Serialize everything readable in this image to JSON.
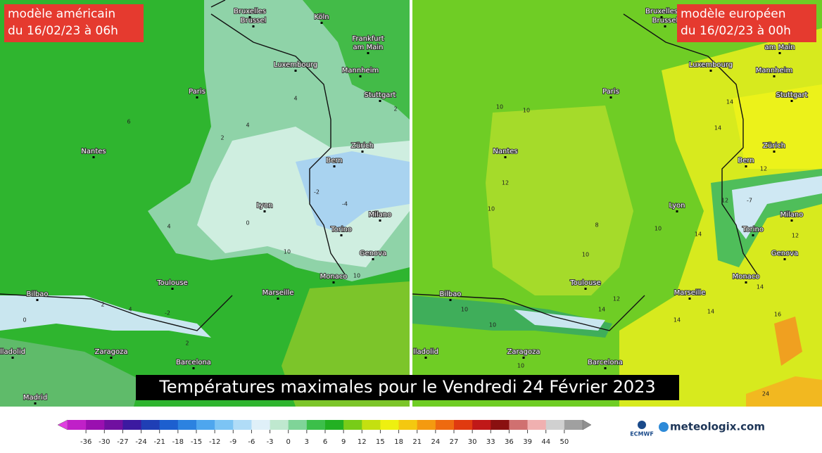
{
  "maps": [
    {
      "label": [
        "modèle américain",
        "du 16/02/23 à 06h"
      ],
      "cities": [
        "Bruxelles",
        "Brussel",
        "Köln",
        "Frankfurt",
        "am Main",
        "Luxembourg",
        "Mannheim",
        "Paris",
        "Stuttgart",
        "Nantes",
        "Zürich",
        "Bern",
        "Lyon",
        "Milano",
        "Torino",
        "Genova",
        "Monaco",
        "Bilbao",
        "Toulouse",
        "Marseille",
        "Zaragoza",
        "Barcelona",
        "Madrid",
        "lladolid"
      ],
      "contour_labels": [
        6,
        4,
        4,
        2,
        2,
        0,
        -2,
        -4,
        4,
        10,
        2,
        4,
        -2,
        2,
        0,
        10
      ]
    },
    {
      "label": [
        "modèle européen",
        "du 16/02/23 à 00h"
      ],
      "cities": [
        "Bruxelles",
        "Brussel",
        "am Main",
        "Luxembourg",
        "Mannheim",
        "Paris",
        "Stuttgart",
        "Nantes",
        "Zürich",
        "Bern",
        "Lyon",
        "Milano",
        "Torino",
        "Genova",
        "Monaco",
        "Bilbao",
        "Toulouse",
        "Marseille",
        "Zaragoza",
        "Barcelona",
        "lladolid"
      ],
      "contour_labels": [
        10,
        10,
        12,
        10,
        14,
        14,
        12,
        12,
        -7,
        14,
        12,
        10,
        8,
        10,
        12,
        14,
        14,
        14,
        14,
        16,
        24,
        10,
        10,
        10
      ]
    }
  ],
  "caption": "Températures maximales pour le Vendredi 24 Février 2023",
  "colorbar_ticks": [
    -36,
    -30,
    -27,
    -24,
    -21,
    -18,
    -15,
    -12,
    -9,
    -6,
    -3,
    0,
    3,
    6,
    9,
    12,
    15,
    18,
    21,
    24,
    27,
    30,
    33,
    36,
    39,
    44,
    50
  ],
  "logos": {
    "ecmwf": "ECMWF",
    "brand": "meteologix.com"
  }
}
